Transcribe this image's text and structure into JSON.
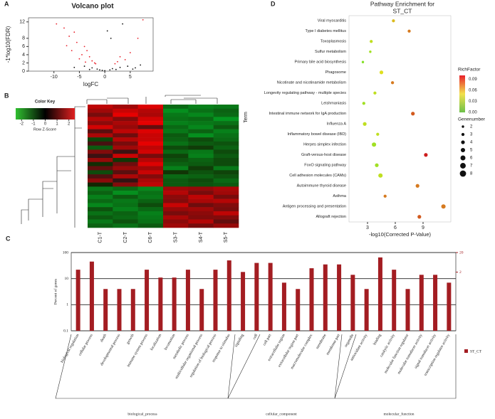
{
  "panels": {
    "a": "A",
    "b": "B",
    "c": "C",
    "d": "D"
  },
  "chart_data": [
    {
      "type": "scatter",
      "title": "Volcano plot",
      "x_label": "logFC",
      "y_label": "-1*log10(FDR)",
      "xlim": [
        -15,
        9.5
      ],
      "ylim": [
        0,
        13
      ],
      "xticks": [
        -10,
        -5,
        0,
        5
      ],
      "yticks": [
        0,
        2,
        4,
        6,
        8,
        12
      ],
      "series": [
        {
          "color": "#e8202a",
          "x": [
            -9.5,
            -8,
            -7,
            -5.5,
            -6,
            -4,
            -3.5,
            -4.5,
            -3,
            -2.5,
            -2,
            -6.5,
            -5,
            -3.8,
            7.5,
            6.5,
            5,
            3,
            2.5,
            4,
            -1.8,
            2,
            -7.5
          ],
          "y": [
            11.5,
            10.5,
            8.5,
            7,
            9.5,
            6,
            5,
            4,
            3.5,
            2.5,
            2,
            5,
            3,
            2.2,
            12.5,
            8,
            4.5,
            3.5,
            2.3,
            2.8,
            1.8,
            1.8,
            6.2
          ]
        },
        {
          "color": "#111111",
          "x": [
            -2.5,
            -1.5,
            -1,
            0,
            1,
            1.5,
            3,
            4.5,
            6,
            7,
            -4,
            -6,
            0.5,
            -0.5,
            2.2,
            5.5,
            -3,
            1.2,
            3.5
          ],
          "y": [
            0.8,
            0.5,
            0.3,
            0.1,
            0.3,
            0.6,
            0.9,
            1.2,
            0.8,
            1.5,
            1.2,
            0.9,
            9.8,
            0.2,
            0.4,
            0.5,
            0.4,
            8,
            11.5
          ]
        }
      ]
    },
    {
      "type": "heatmap",
      "key_title": "Color Key",
      "key_label": "Row Z-Score",
      "key_lim": [
        -2.5,
        2.5
      ],
      "key_ticks": [
        -2,
        -1,
        0,
        1,
        2
      ],
      "columns": [
        "C1-T",
        "C2-T",
        "C6-T",
        "S3-T",
        "S4-T",
        "S5-T"
      ],
      "rows": [
        [
          1.5,
          1.2,
          1.8,
          -1.0,
          -1.3,
          -1.2
        ],
        [
          1.2,
          1.6,
          1.4,
          -1.5,
          -1.1,
          -0.9
        ],
        [
          0.8,
          1.9,
          1.3,
          -1.2,
          -1.4,
          -1.0
        ],
        [
          1.4,
          0.9,
          1.7,
          -1.1,
          -1.0,
          -1.6
        ],
        [
          1.0,
          1.3,
          1.9,
          -1.3,
          -1.2,
          -1.1
        ],
        [
          1.7,
          1.1,
          0.6,
          -1.0,
          -1.4,
          -0.8
        ],
        [
          0.5,
          1.5,
          1.8,
          -1.2,
          -0.9,
          -1.3
        ],
        [
          1.3,
          0.7,
          1.6,
          -0.8,
          -1.5,
          -1.1
        ],
        [
          -0.5,
          1.4,
          1.6,
          -0.9,
          -0.6,
          -1.0
        ],
        [
          0.3,
          0.8,
          1.9,
          -1.1,
          -0.8,
          -0.7
        ],
        [
          -0.8,
          1.2,
          1.5,
          -0.6,
          -0.4,
          -0.9
        ],
        [
          0.9,
          0.2,
          1.7,
          -1.0,
          -1.2,
          -0.6
        ],
        [
          0.2,
          1.6,
          0.8,
          -0.5,
          -1.3,
          -0.8
        ],
        [
          1.1,
          -0.3,
          1.4,
          -0.7,
          -0.9,
          -0.6
        ],
        [
          -0.2,
          0.7,
          1.8,
          -0.9,
          -0.8,
          -0.6
        ],
        [
          0.6,
          1.1,
          1.2,
          -1.3,
          -0.4,
          -1.2
        ],
        [
          -0.6,
          0.5,
          1.6,
          -0.3,
          -0.7,
          -0.5
        ],
        [
          0.4,
          1.3,
          0.9,
          -1.0,
          -0.9,
          -0.7
        ],
        [
          1.0,
          0.1,
          1.3,
          -0.8,
          -0.6,
          -1.0
        ],
        [
          -0.1,
          0.9,
          1.5,
          -0.8,
          -0.7,
          -0.8
        ],
        [
          -1.2,
          -1.0,
          -1.4,
          1.2,
          1.1,
          1.3
        ],
        [
          -0.9,
          -1.5,
          -1.1,
          1.4,
          0.8,
          1.2
        ],
        [
          -1.3,
          -0.8,
          -1.2,
          1.0,
          1.5,
          0.8
        ],
        [
          -1.0,
          -1.2,
          -0.9,
          0.9,
          1.3,
          1.4
        ],
        [
          -1.4,
          -1.1,
          -0.6,
          1.6,
          0.7,
          0.9
        ],
        [
          -0.7,
          -1.3,
          -1.0,
          1.1,
          1.2,
          0.8
        ],
        [
          -1.1,
          -0.9,
          -1.3,
          0.8,
          1.0,
          1.5
        ],
        [
          -0.8,
          -1.0,
          -1.2,
          1.3,
          0.9,
          0.9
        ],
        [
          -1.2,
          -0.7,
          -1.1,
          1.0,
          1.4,
          0.6
        ],
        [
          -0.9,
          -1.1,
          -0.8,
          1.2,
          0.8,
          1.1
        ]
      ]
    },
    {
      "type": "bar",
      "y_label": "Percent of genes",
      "log_scale": true,
      "ylim": [
        0.1,
        100
      ],
      "yticks": [
        0.1,
        1,
        10,
        100
      ],
      "y2lim": [
        0.002,
        20
      ],
      "y2ticks": [
        2,
        20
      ],
      "categories": [
        "biological regulation",
        "cellular process",
        "death",
        "developmental process",
        "growth",
        "immune system process",
        "localization",
        "locomotion",
        "metabolic process",
        "multicellular organismal process",
        "regulation of biological process",
        "response to stimulus",
        "signaling",
        "cell",
        "cell part",
        "extracellular region",
        "extracellular region part",
        "macromolecular complex",
        "membrane",
        "membrane part",
        "organelle",
        "antioxidant activity",
        "binding",
        "catalytic activity",
        "molecular function regulator",
        "molecular transducer activity",
        "signal transducer activity",
        "transcription regulator activity"
      ],
      "groups": [
        "biological_process",
        "cellular_component",
        "molecular_function"
      ],
      "series": [
        {
          "name": "ST_CT",
          "color": "#a31d22",
          "values": [
            22,
            45,
            4,
            4,
            4,
            22,
            11,
            11,
            22,
            4,
            22,
            50,
            18,
            40,
            40,
            7,
            4,
            25,
            35,
            35,
            14,
            4,
            65,
            22,
            4,
            14,
            14,
            7
          ]
        }
      ]
    },
    {
      "type": "bubble",
      "title": "Pathway Enrichment for",
      "subtitle": "ST_CT",
      "x_label": "-log10(Corrected P-Value)",
      "y_label": "Term",
      "xlim": [
        1,
        12
      ],
      "xticks": [
        3,
        6,
        9
      ],
      "categories": [
        "Viral myocarditis",
        "Type I diabetes mellitus",
        "Toxoplasmosis",
        "Sulfur metabolism",
        "Primary bile acid biosynthesis",
        "Phagosome",
        "Nicotinate and nicotinamide metabolism",
        "Longevity regulating pathway - multiple species",
        "Leishmaniasis",
        "Intestinal immune network for IgA production",
        "Influenza A",
        "Inflammatory bowel disease (IBD)",
        "Herpes simplex infection",
        "Graft-versus-host disease",
        "FoxO signaling pathway",
        "Cell adhesion molecules (CAMs)",
        "Autoimmune thyroid disease",
        "Asthma",
        "Antigen processing and presentation",
        "Allograft rejection"
      ],
      "values": [
        5.8,
        7.5,
        3.4,
        3.3,
        2.5,
        4.5,
        5.7,
        3.8,
        2.6,
        7.9,
        2.7,
        4.1,
        3.7,
        9.3,
        4.0,
        4.4,
        8.4,
        4.9,
        11.2,
        8.6
      ],
      "rich_factor": [
        0.05,
        0.07,
        0.03,
        0.02,
        0.01,
        0.04,
        0.07,
        0.03,
        0.02,
        0.08,
        0.03,
        0.03,
        0.02,
        0.1,
        0.02,
        0.03,
        0.07,
        0.07,
        0.07,
        0.08
      ],
      "gene_number": [
        3,
        3,
        3,
        2,
        2,
        4,
        3,
        3,
        3,
        4,
        4,
        3,
        5,
        4,
        4,
        5,
        4,
        3,
        5,
        4
      ],
      "color_title": "RichFactor",
      "color_lim": [
        0,
        0.1
      ],
      "color_ticks": [
        {
          "value": 0,
          "label": "0.00"
        },
        {
          "value": 0.03,
          "label": "0.03"
        },
        {
          "value": 0.06,
          "label": "0.06"
        },
        {
          "value": 0.09,
          "label": "0.09"
        }
      ],
      "size_title": "Genenumber",
      "size_ticks": [
        2,
        3,
        4,
        5,
        6,
        7,
        8
      ]
    }
  ]
}
